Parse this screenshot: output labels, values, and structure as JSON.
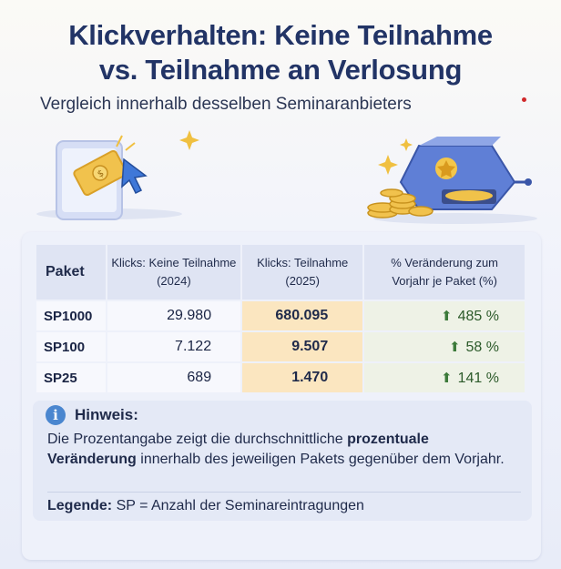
{
  "header": {
    "title_line1": "Klickverhalten: Keine Teilnahme",
    "title_line2": "vs. Teilnahme an Verlosung",
    "subtitle": "Vergleich innerhalb desselben Seminaranbieters"
  },
  "table": {
    "headers": {
      "col0": "Paket",
      "col1_a": "Klicks: Keine Teilnahme",
      "col1_b": "(2024)",
      "col2_a": "Klicks: Teilnahme",
      "col2_b": "(2025)",
      "col3_a": "% Veränderung zum",
      "col3_b": "Vorjahr je Paket (%)"
    },
    "rows": [
      {
        "paket": "SP1000",
        "keine": "29.980",
        "teilnahme": "680.095",
        "change": "485 %"
      },
      {
        "paket": "SP100",
        "keine": "7.122",
        "teilnahme": "9.507",
        "change": "58 %"
      },
      {
        "paket": "SP25",
        "keine": "689",
        "teilnahme": "1.470",
        "change": "141 %"
      }
    ],
    "up_arrow": "⬆"
  },
  "note": {
    "icon": "i",
    "title": "Hinweis:",
    "text_part1": "Die Prozentangabe zeigt die durchschnittliche ",
    "text_bold": "prozentuale Veränderung",
    "text_part2": " innerhalb des jeweiligen Pakets gegenüber dem Vorjahr."
  },
  "legend": {
    "label": "Legende:",
    "text": " SP = Anzahl der Seminareintragungen"
  },
  "colors": {
    "title": "#223466",
    "highlight": "#fbe6c0",
    "positive": "#3c7a3a",
    "info": "#4a86cf"
  }
}
